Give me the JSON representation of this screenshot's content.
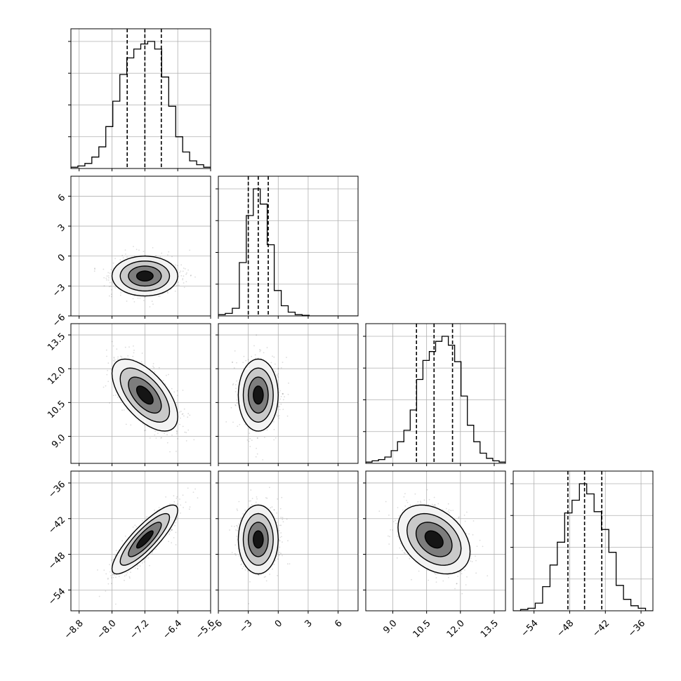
{
  "chart_data": {
    "type": "corner",
    "parameters": [
      {
        "lim": [
          -9.0,
          -5.6
        ],
        "ticks": [
          -8.8,
          -8.0,
          -7.2,
          -6.4,
          -5.6
        ],
        "tick_labels": [
          "−8.8",
          "−8.0",
          "−7.2",
          "−6.4",
          "−5.6"
        ],
        "quantiles": [
          -7.63,
          -7.2,
          -6.8
        ],
        "histogram": [
          0.01,
          0.02,
          0.04,
          0.09,
          0.17,
          0.33,
          0.53,
          0.74,
          0.87,
          0.94,
          0.98,
          1.0,
          0.94,
          0.72,
          0.49,
          0.25,
          0.13,
          0.06,
          0.03,
          0.01
        ]
      },
      {
        "lim": [
          -6,
          8
        ],
        "ticks": [
          -6,
          -3,
          0,
          3,
          6
        ],
        "tick_labels": [
          "−6",
          "−3",
          "0",
          "3",
          "6"
        ],
        "quantiles": [
          -3.0,
          -2.0,
          -1.0
        ],
        "histogram": [
          0.01,
          0.02,
          0.06,
          0.42,
          0.79,
          1.0,
          0.88,
          0.56,
          0.2,
          0.08,
          0.03,
          0.01,
          0.005,
          0.0,
          0.0,
          0.0,
          0.0,
          0.0,
          0.0,
          0.0
        ]
      },
      {
        "lim": [
          7.8,
          14.0
        ],
        "ticks": [
          9.0,
          10.5,
          12.0,
          13.5
        ],
        "tick_labels": [
          "9.0",
          "10.5",
          "12.0",
          "13.5"
        ],
        "quantiles": [
          10.05,
          10.83,
          11.65
        ],
        "histogram": [
          0.01,
          0.02,
          0.03,
          0.05,
          0.1,
          0.17,
          0.26,
          0.42,
          0.66,
          0.81,
          0.88,
          0.96,
          1.0,
          0.93,
          0.8,
          0.53,
          0.3,
          0.17,
          0.08,
          0.04,
          0.02,
          0.01
        ]
      },
      {
        "lim": [
          -57.5,
          -34.0
        ],
        "ticks": [
          -54,
          -48,
          -42,
          -36
        ],
        "tick_labels": [
          "−54",
          "−48",
          "−42",
          "−36"
        ],
        "quantiles": [
          -48.3,
          -45.5,
          -42.6
        ],
        "histogram": [
          0.0,
          0.01,
          0.02,
          0.06,
          0.19,
          0.36,
          0.54,
          0.77,
          0.87,
          1.0,
          0.92,
          0.78,
          0.64,
          0.46,
          0.2,
          0.09,
          0.04,
          0.02,
          0.0
        ]
      }
    ],
    "y_axis_labels": {
      "1": {
        "ticks": [
          -6,
          -3,
          0,
          3,
          6
        ],
        "tick_labels": [
          "−6",
          "−3",
          "0",
          "3",
          "6"
        ]
      },
      "2": {
        "ticks": [
          9.0,
          10.5,
          12.0,
          13.5
        ],
        "tick_labels": [
          "9.0",
          "10.5",
          "12.0",
          "13.5"
        ]
      },
      "3": {
        "ticks": [
          -54,
          -48,
          -42,
          -36
        ],
        "tick_labels": [
          "−54",
          "−48",
          "−42",
          "−36"
        ]
      }
    },
    "pairs": [
      {
        "row": 1,
        "col": 0,
        "mean": [
          -7.2,
          -2.0
        ],
        "sd": [
          0.4,
          1.0
        ],
        "corr": 0.0
      },
      {
        "row": 2,
        "col": 0,
        "mean": [
          -7.2,
          10.83
        ],
        "sd": [
          0.4,
          0.8
        ],
        "corr": -0.6
      },
      {
        "row": 2,
        "col": 1,
        "mean": [
          -2.0,
          10.83
        ],
        "sd": [
          1.0,
          0.8
        ],
        "corr": 0.0
      },
      {
        "row": 3,
        "col": 0,
        "mean": [
          -7.2,
          -45.5
        ],
        "sd": [
          0.4,
          2.9
        ],
        "corr": 0.85
      },
      {
        "row": 3,
        "col": 1,
        "mean": [
          -2.0,
          -45.5
        ],
        "sd": [
          1.0,
          2.9
        ],
        "corr": 0.0
      },
      {
        "row": 3,
        "col": 2,
        "mean": [
          10.83,
          -45.5
        ],
        "sd": [
          0.8,
          2.9
        ],
        "corr": -0.35
      }
    ],
    "contour_levels_sigma": [
      0.5,
      1.0,
      1.5,
      2.0
    ],
    "grid": true,
    "colors": {
      "points": "#000000",
      "contour": "#000000",
      "frame": "#000000",
      "grid": "#b0b0b0"
    }
  }
}
